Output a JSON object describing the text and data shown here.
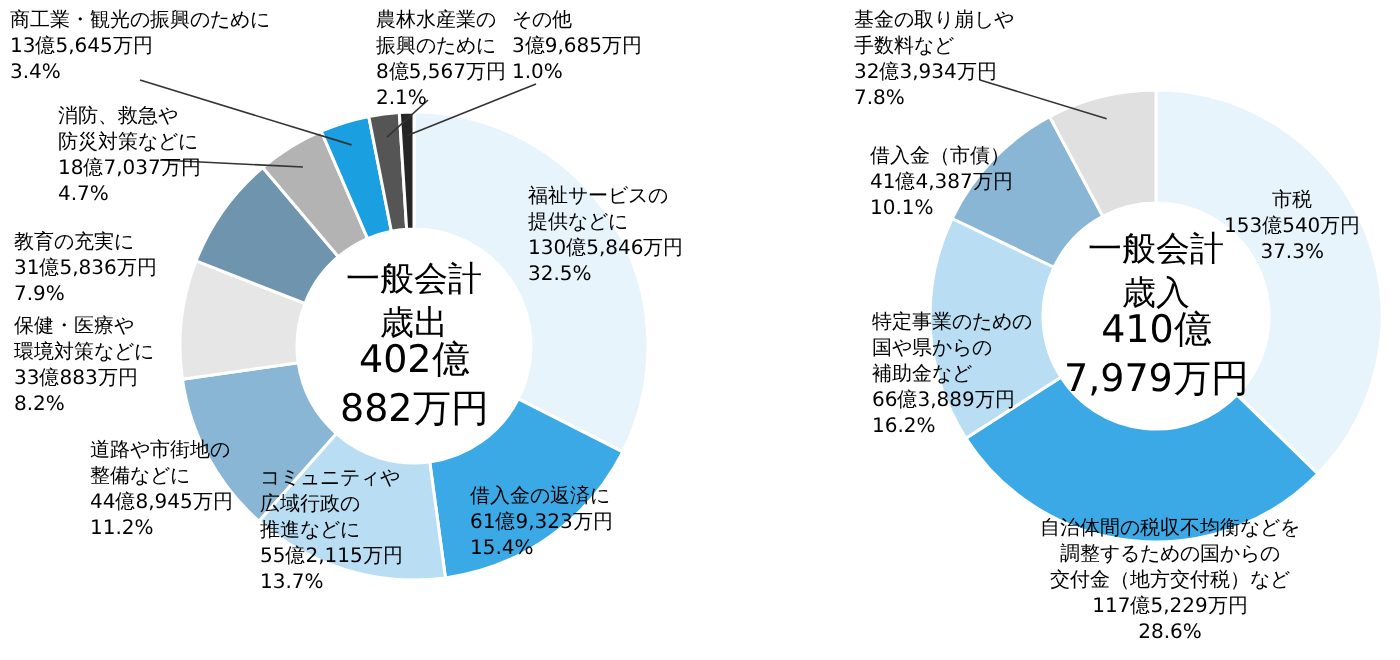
{
  "chart_data": [
    {
      "type": "donut",
      "annotations": [
        "一般会計歳出",
        "402億882万円"
      ],
      "categories": [
        "福祉サービスの提供などに",
        "借入金の返済に",
        "コミュニティや広域行政の推進などに",
        "道路や市街地の整備などに",
        "保健・医療や環境対策などに",
        "教育の充実に",
        "消防、救急や防災対策などに",
        "商工業・観光の振興のために",
        "農林水産業の振興のために",
        "その他"
      ],
      "values": [
        32.5,
        15.4,
        13.7,
        11.2,
        8.2,
        7.9,
        4.7,
        3.4,
        2.1,
        1.0
      ],
      "value_labels": [
        "130億5,846万円\n32.5%",
        "61億9,323万円\n15.4%",
        "55億2,115万円\n13.7%",
        "44億8,945万円\n11.2%",
        "33億883万円\n8.2%",
        "31億5,836万円\n7.9%",
        "18億7,037万円\n4.7%",
        "13億5,645万円\n3.4%",
        "8億5,567万円\n2.1%",
        "3億9,685万円\n1.0%"
      ],
      "colors": [
        "#e8f4fc",
        "#3aa9e6",
        "#b9def4",
        "#8ab6d6",
        "#e6e6e6",
        "#6f94ae",
        "#b3b3b3",
        "#1a9fe0",
        "#555555",
        "#262626"
      ]
    },
    {
      "type": "donut",
      "annotations": [
        "一般会計歳入",
        "410億7,979万円"
      ],
      "categories": [
        "市税",
        "自治体間の税収不均衡などを調整するための国からの交付金（地方交付税）など",
        "特定事業のための国や県からの補助金など",
        "借入金（市債）",
        "基金の取り崩しや手数料など"
      ],
      "values": [
        37.3,
        28.6,
        16.2,
        10.1,
        7.8
      ],
      "value_labels": [
        "153億540万円\n37.3%",
        "117億5,229万円\n28.6%",
        "66億3,889万円\n16.2%",
        "41億4,387万円\n10.1%",
        "32億3,934万円\n7.8%"
      ],
      "colors": [
        "#e8f4fc",
        "#3aa9e6",
        "#b9def4",
        "#8ab6d6",
        "#e0e0e0"
      ]
    }
  ]
}
